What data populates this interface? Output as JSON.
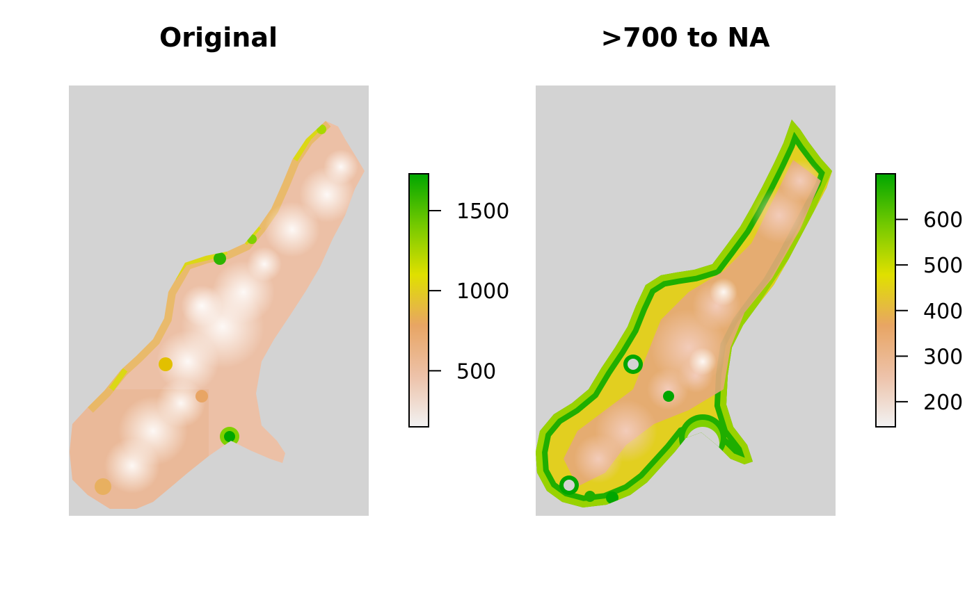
{
  "chart_data": [
    {
      "type": "heatmap",
      "title": "Original",
      "xlabel": "",
      "ylabel": "",
      "background_color": "#d3d3d3",
      "na_color": "#d3d3d3",
      "value_range": [
        150,
        1730
      ],
      "colorbar": {
        "ticks": [
          500,
          1000,
          1500
        ],
        "tick_labels": [
          "500",
          "1000",
          "1500"
        ],
        "colors": [
          "#f2f2f2",
          "#edc2a9",
          "#e8a564",
          "#e0e000",
          "#73c900",
          "#00a600"
        ]
      },
      "region_fill_typical": 380
    },
    {
      "type": "heatmap",
      "title": ">700 to NA",
      "xlabel": "",
      "ylabel": "",
      "background_color": "#d3d3d3",
      "na_color": "#d3d3d3",
      "value_range": [
        145,
        700
      ],
      "colorbar": {
        "ticks": [
          200,
          300,
          400,
          500,
          600
        ],
        "tick_labels": [
          "200",
          "300",
          "400",
          "500",
          "600"
        ],
        "colors": [
          "#f2f2f2",
          "#edc2a9",
          "#e8a564",
          "#e0e000",
          "#73c900",
          "#00a600"
        ]
      },
      "region_fill_typical": 380
    }
  ]
}
